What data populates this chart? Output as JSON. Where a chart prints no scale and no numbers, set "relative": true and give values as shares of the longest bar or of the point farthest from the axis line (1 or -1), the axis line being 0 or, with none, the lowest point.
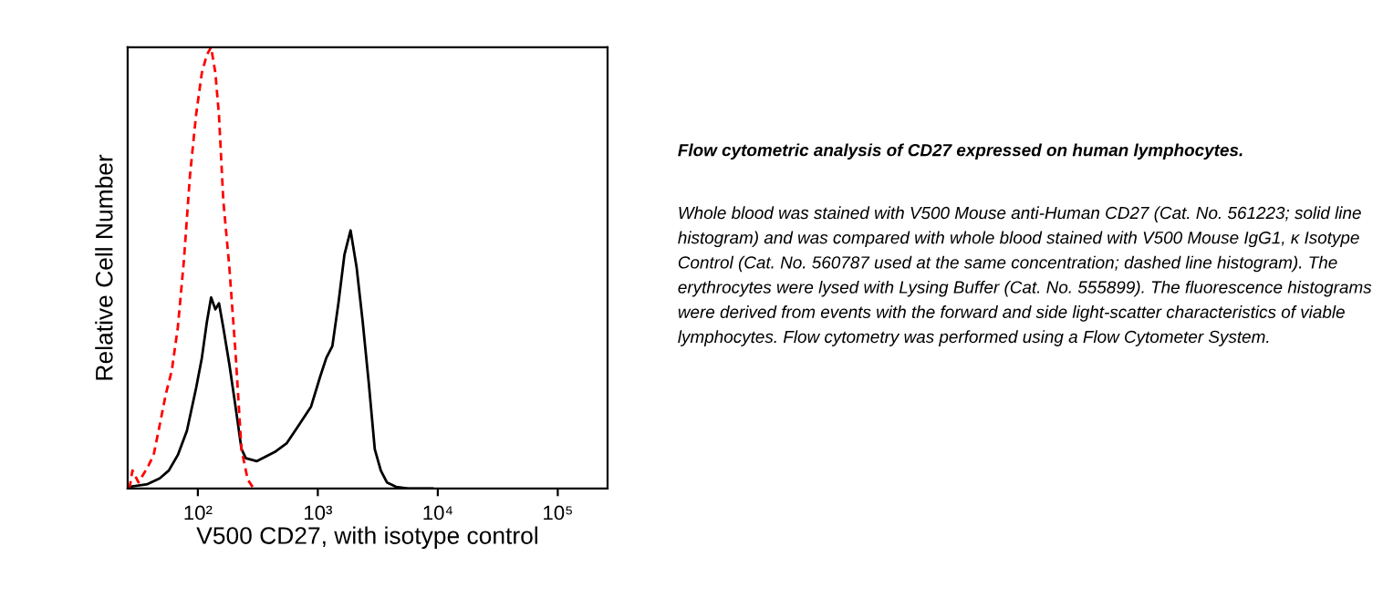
{
  "chart_data": {
    "type": "line",
    "relative": true,
    "log": "x",
    "xlabel": "V500 CD27, with isotype control",
    "ylabel": "Relative Cell Number",
    "title": "Flow cytometric analysis of CD27 expressed on human lymphocytes.",
    "annotations": [
      "Whole blood was stained with V500 Mouse anti-Human CD27 (Cat. No. 561223; solid line histogram) and was compared with whole blood stained with V500 Mouse IgG1, κ Isotype Control (Cat. No. 560787 used at the same concentration; dashed line histogram). The erythrocytes were lysed with Lysing Buffer (Cat. No. 555899). The fluorescence histograms were derived from events with the forward and side light-scatter characteristics of viable lymphocytes. Flow cytometry was performed using a Flow Cytometer System."
    ],
    "xlim": [
      26,
      260000
    ],
    "xticks": [
      {
        "value": 100,
        "label": "10²"
      },
      {
        "value": 1000,
        "label": "10³"
      },
      {
        "value": 10000,
        "label": "10⁴"
      },
      {
        "value": 100000,
        "label": "10⁵"
      }
    ],
    "tick_labels": "x",
    "grid": false,
    "legend": false,
    "series": [
      {
        "color": "#000000",
        "line_style": "solid",
        "x": [
          26.9,
          38.1,
          48.1,
          57.3,
          68.1,
          81.1,
          96.6,
          108,
          119,
          129,
          140,
          150,
          163,
          183,
          206,
          231,
          251,
          309,
          438,
          552,
          696,
          879,
          1047,
          1177,
          1322,
          1485,
          1667,
          1875,
          2104,
          2366,
          2656,
          2985,
          3350,
          3767,
          4487,
          5662,
          9016
        ],
        "values": [
          0.004,
          0.01,
          0.023,
          0.041,
          0.076,
          0.131,
          0.227,
          0.296,
          0.378,
          0.433,
          0.406,
          0.42,
          0.365,
          0.282,
          0.186,
          0.09,
          0.069,
          0.062,
          0.083,
          0.103,
          0.144,
          0.186,
          0.254,
          0.296,
          0.323,
          0.42,
          0.53,
          0.585,
          0.502,
          0.378,
          0.241,
          0.089,
          0.041,
          0.014,
          0.004,
          0.0,
          0.0
        ]
      },
      {
        "color": "#ff0000",
        "line_style": "dashed",
        "x": [
          26.9,
          28.5,
          32.0,
          38.1,
          42.8,
          48.1,
          54.0,
          60.7,
          68.1,
          76.5,
          85.9,
          96.6,
          108,
          119,
          129,
          140,
          150,
          163,
          183,
          206,
          231,
          260,
          292
        ],
        "values": [
          0.0,
          0.041,
          0.014,
          0.048,
          0.076,
          0.144,
          0.213,
          0.268,
          0.365,
          0.516,
          0.708,
          0.846,
          0.942,
          0.983,
          1.0,
          0.942,
          0.846,
          0.653,
          0.502,
          0.309,
          0.089,
          0.021,
          0.0
        ]
      }
    ]
  }
}
